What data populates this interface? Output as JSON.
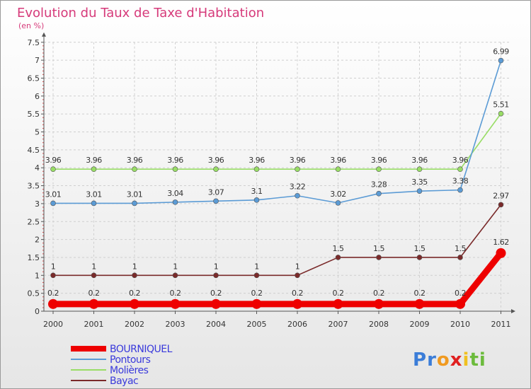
{
  "chart_data": {
    "type": "line",
    "title": "Evolution du Taux de Taxe d'Habitation",
    "subtitle": "(en %)",
    "x": [
      "2000",
      "2001",
      "2002",
      "2003",
      "2004",
      "2005",
      "2006",
      "2007",
      "2008",
      "2009",
      "2010",
      "2011"
    ],
    "yticks": [
      "0",
      "0.5",
      "1",
      "1.5",
      "2",
      "2.5",
      "3",
      "3.5",
      "4",
      "4.5",
      "5",
      "5.5",
      "6",
      "6.5",
      "7",
      "7.5"
    ],
    "ylim": [
      0,
      7.5
    ],
    "series": [
      {
        "name": "BOURNIQUEL",
        "color": "#ee0000",
        "values": [
          0.2,
          0.2,
          0.2,
          0.2,
          0.2,
          0.2,
          0.2,
          0.2,
          0.2,
          0.2,
          0.2,
          1.62
        ],
        "labels": [
          "0.2",
          "0.2",
          "0.2",
          "0.2",
          "0.2",
          "0.2",
          "0.2",
          "0.2",
          "0.2",
          "0.2",
          "0.2",
          "1.62"
        ]
      },
      {
        "name": "Pontours",
        "color": "#5b9bd5",
        "values": [
          3.01,
          3.01,
          3.01,
          3.04,
          3.07,
          3.1,
          3.22,
          3.02,
          3.28,
          3.35,
          3.38,
          6.99
        ],
        "labels": [
          "3.01",
          "3.01",
          "3.01",
          "3.04",
          "3.07",
          "3.1",
          "3.22",
          "3.02",
          "3.28",
          "3.35",
          "3.38",
          "6.99"
        ]
      },
      {
        "name": "Molières",
        "color": "#99dd66",
        "values": [
          3.96,
          3.96,
          3.96,
          3.96,
          3.96,
          3.96,
          3.96,
          3.96,
          3.96,
          3.96,
          3.96,
          5.51
        ],
        "labels": [
          "3.96",
          "3.96",
          "3.96",
          "3.96",
          "3.96",
          "3.96",
          "3.96",
          "3.96",
          "3.96",
          "3.96",
          "3.96",
          "5.51"
        ]
      },
      {
        "name": "Bayac",
        "color": "#7a2a2a",
        "values": [
          1,
          1,
          1,
          1,
          1,
          1,
          1,
          1.5,
          1.5,
          1.5,
          1.5,
          2.97
        ],
        "labels": [
          "1",
          "1",
          "1",
          "1",
          "1",
          "1",
          "1",
          "1.5",
          "1.5",
          "1.5",
          "1.5",
          "2.97"
        ]
      }
    ],
    "grid": true,
    "legend": "bottom-left"
  },
  "logo": {
    "text": "Proxiti"
  }
}
